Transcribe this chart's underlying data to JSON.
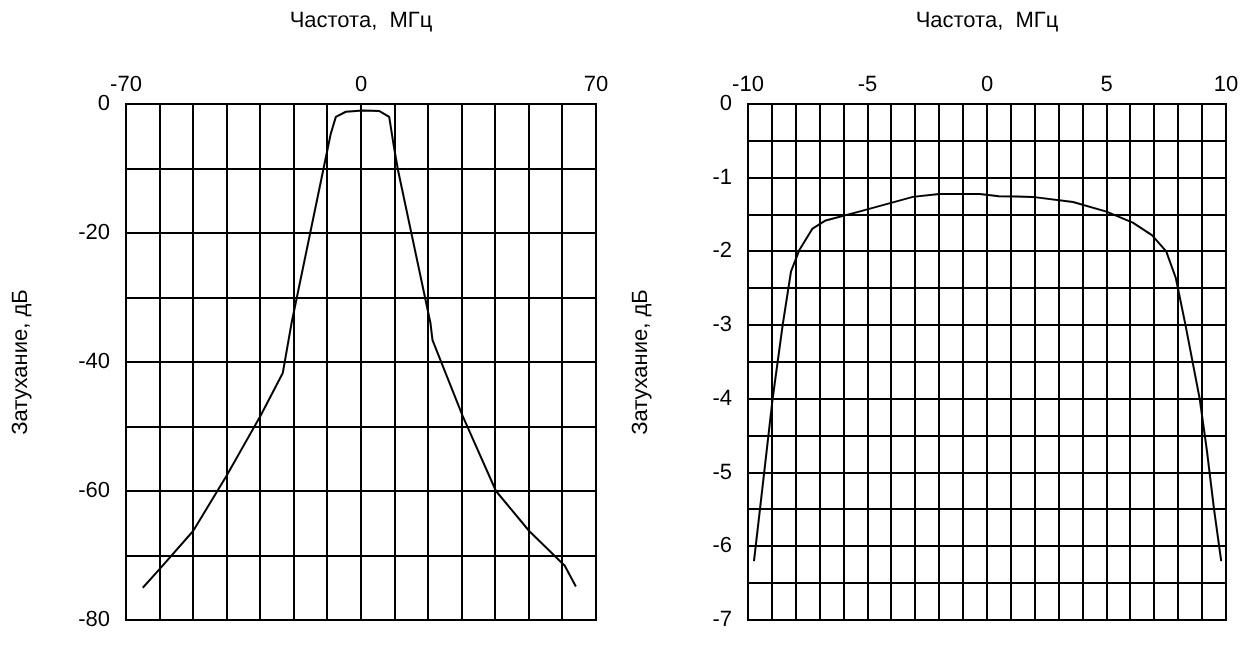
{
  "chart_data": [
    {
      "type": "line",
      "xlabel": "Частота,  МГц",
      "ylabel": "Затухание, дБ",
      "xlim": [
        -70,
        70
      ],
      "ylim": [
        -80,
        0
      ],
      "xticks": [
        -70,
        {
          "value": -60,
          "label": null
        },
        {
          "value": -50,
          "label": null
        },
        {
          "value": -40,
          "label": null
        },
        {
          "value": -30,
          "label": null
        },
        {
          "value": -20,
          "label": null
        },
        {
          "value": -10,
          "label": null
        },
        0,
        {
          "value": 10,
          "label": null
        },
        {
          "value": 20,
          "label": null
        },
        {
          "value": 30,
          "label": null
        },
        {
          "value": 40,
          "label": null
        },
        {
          "value": 50,
          "label": null
        },
        {
          "value": 60,
          "label": null
        },
        70
      ],
      "yticks": [
        -80,
        {
          "value": -70,
          "label": null
        },
        -60,
        {
          "value": -50,
          "label": null
        },
        -40,
        {
          "value": -30,
          "label": null
        },
        -20,
        {
          "value": -10,
          "label": null
        },
        0
      ],
      "grid": true,
      "legend": false,
      "marker": "none",
      "series": [
        {
          "color": "#000000",
          "x": [
            -65,
            -60,
            -50,
            -40,
            -30,
            -23.3,
            -20.7,
            -10.4,
            -9,
            -7.5,
            -4.5,
            0.5,
            5.5,
            8.4,
            9.8,
            11,
            20.7,
            21.3,
            30.3,
            40.2,
            50.1,
            60.7,
            64
          ],
          "values": [
            -75,
            -72.1,
            -66.2,
            -57.6,
            -48.4,
            -41.7,
            -34,
            -8.1,
            -4.6,
            -2,
            -1.2,
            -1,
            -1.1,
            -2,
            -6.6,
            -10.2,
            -34,
            -36.6,
            -48.4,
            -60,
            -66.2,
            -71.6,
            -74.8
          ]
        }
      ]
    },
    {
      "type": "line",
      "xlabel": "Частота,  МГц",
      "ylabel": "Затухание, дБ",
      "xlim": [
        -10,
        10
      ],
      "ylim": [
        -7,
        0
      ],
      "xticks": [
        -10,
        {
          "value": -9,
          "label": null
        },
        {
          "value": -8,
          "label": null
        },
        {
          "value": -7,
          "label": null
        },
        {
          "value": -6,
          "label": null
        },
        -5,
        {
          "value": -4,
          "label": null
        },
        {
          "value": -3,
          "label": null
        },
        {
          "value": -2,
          "label": null
        },
        {
          "value": -1,
          "label": null
        },
        0,
        {
          "value": 1,
          "label": null
        },
        {
          "value": 2,
          "label": null
        },
        {
          "value": 3,
          "label": null
        },
        {
          "value": 4,
          "label": null
        },
        5,
        {
          "value": 6,
          "label": null
        },
        {
          "value": 7,
          "label": null
        },
        {
          "value": 8,
          "label": null
        },
        {
          "value": 9,
          "label": null
        },
        10
      ],
      "yticks": [
        -7,
        {
          "value": -6.5,
          "label": null
        },
        -6,
        {
          "value": -5.5,
          "label": null
        },
        -5,
        {
          "value": -4.5,
          "label": null
        },
        -4,
        {
          "value": -3.5,
          "label": null
        },
        -3,
        {
          "value": -2.5,
          "label": null
        },
        -2,
        {
          "value": -1.5,
          "label": null
        },
        -1,
        {
          "value": -0.5,
          "label": null
        },
        0
      ],
      "grid": true,
      "legend": false,
      "marker": "none",
      "series": [
        {
          "color": "#000000",
          "x": [
            -9.75,
            -9.5,
            -8.97,
            -8.55,
            -8.2,
            -7.85,
            -7.3,
            -6.75,
            -5.35,
            -3.1,
            -2,
            -0.3,
            0.5,
            1.9,
            3.6,
            5,
            6.1,
            6.9,
            7.5,
            7.9,
            8.3,
            8.9,
            9.2,
            9.5,
            9.8
          ],
          "values": [
            -6.2,
            -5.5,
            -4,
            -3,
            -2.27,
            -1.98,
            -1.69,
            -1.58,
            -1.46,
            -1.26,
            -1.22,
            -1.22,
            -1.25,
            -1.26,
            -1.33,
            -1.46,
            -1.61,
            -1.78,
            -2,
            -2.36,
            -2.99,
            -4,
            -4.7,
            -5.5,
            -6.2
          ]
        }
      ]
    }
  ]
}
